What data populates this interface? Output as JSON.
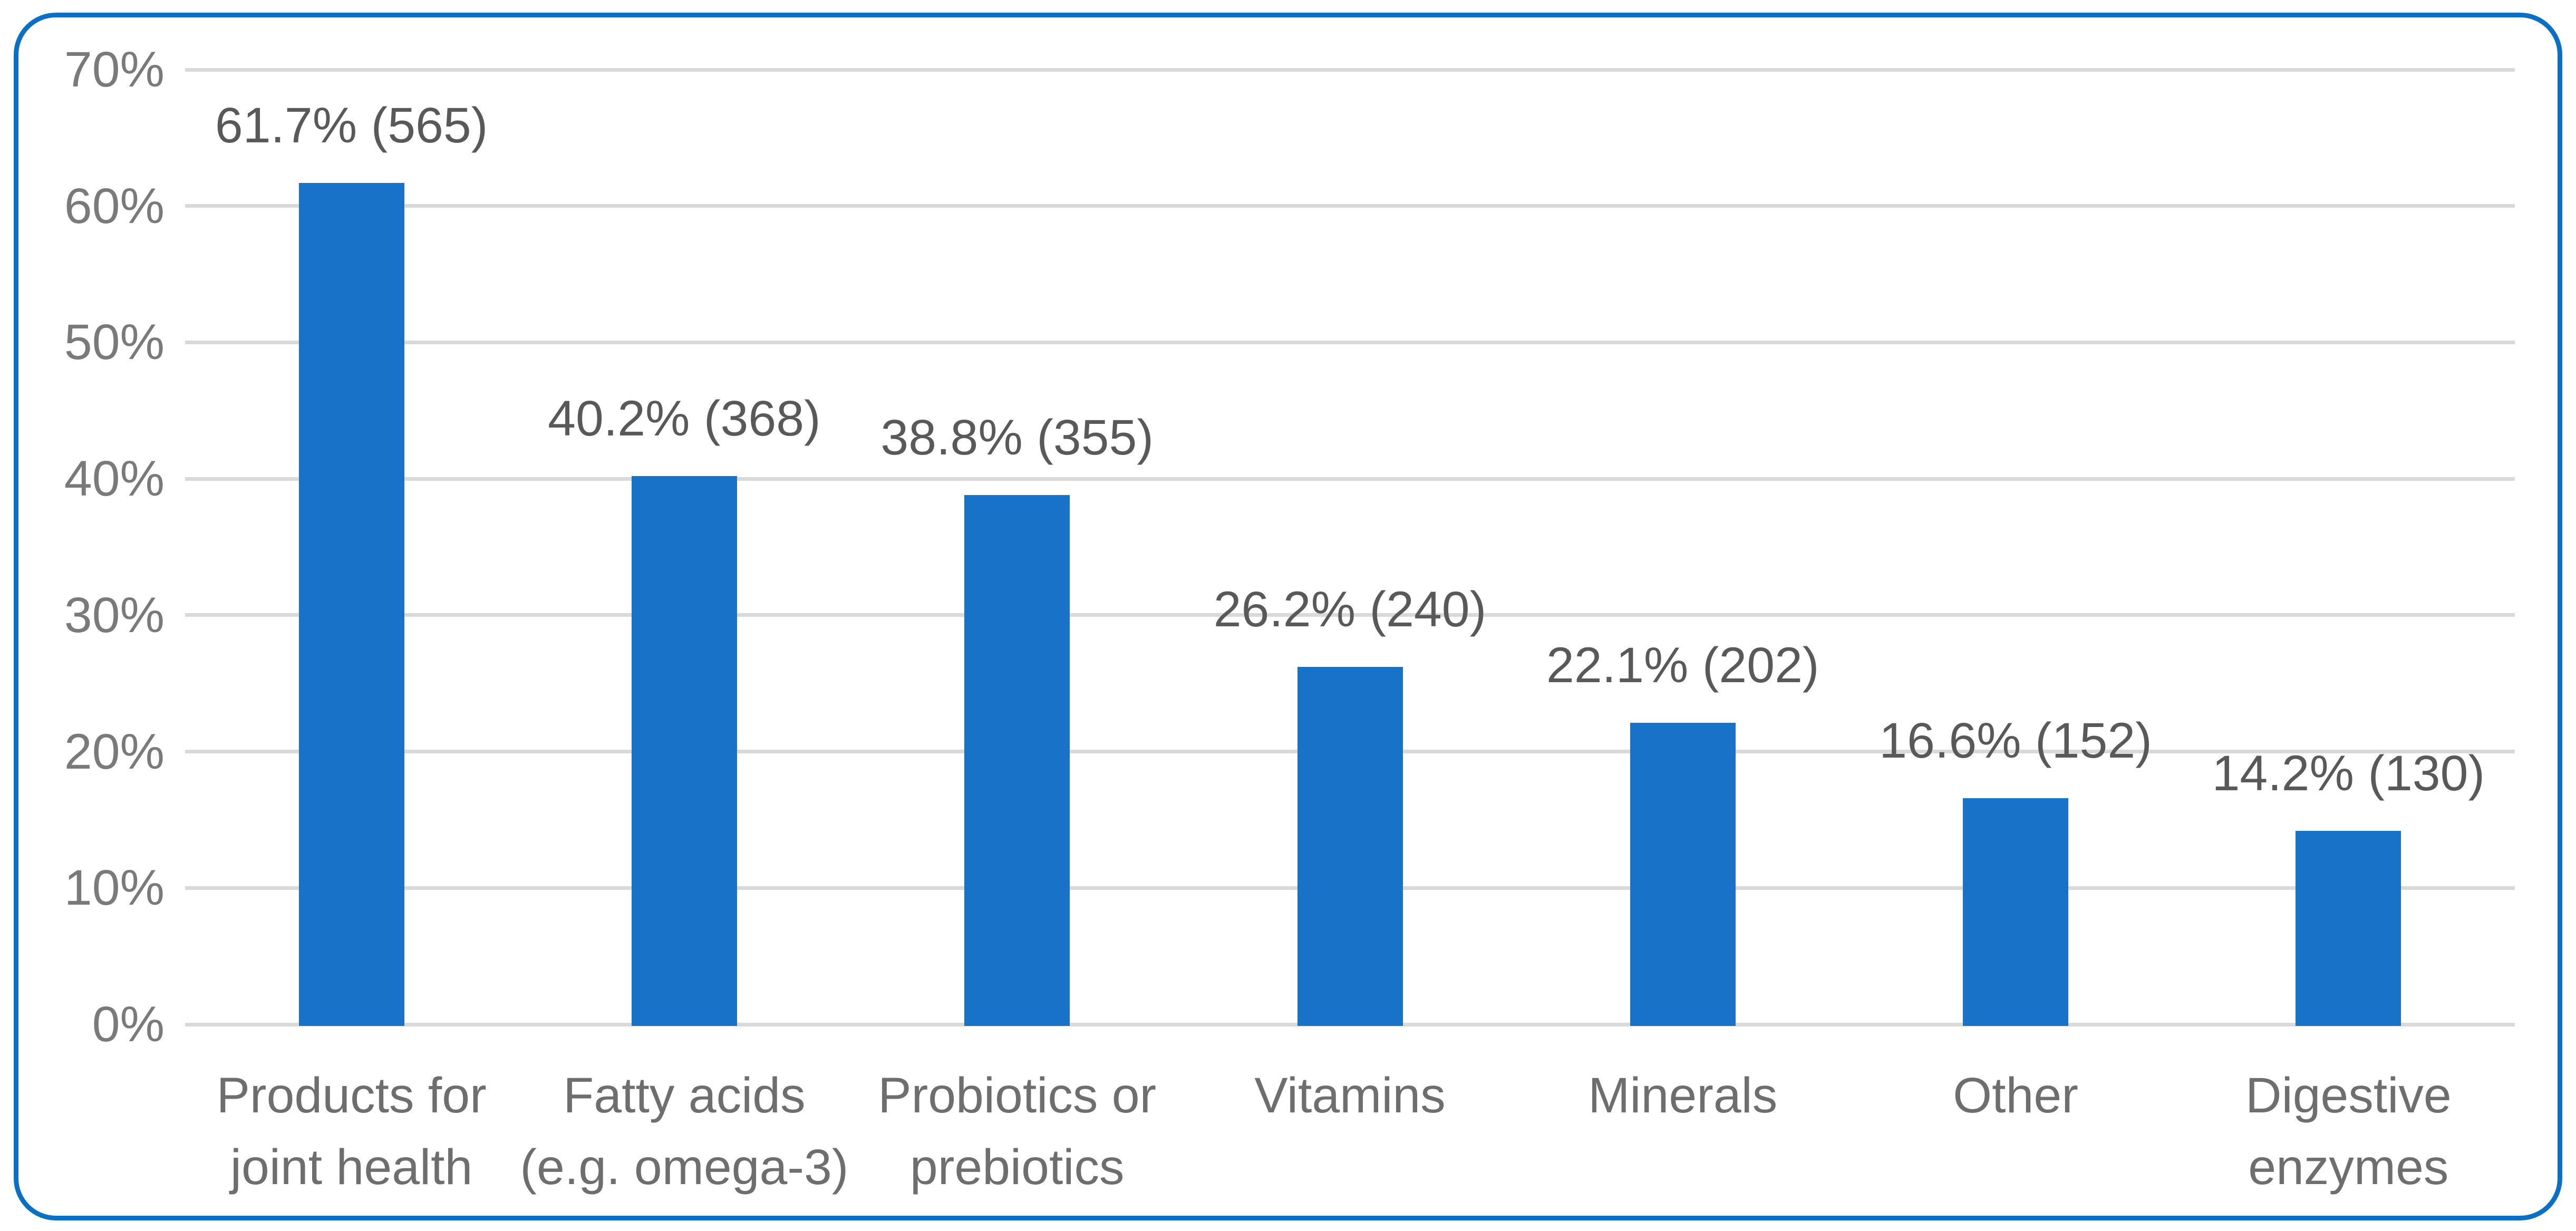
{
  "styles": {
    "background": "#FFFFFF",
    "frame_border_color": "#0B6FC3",
    "bar_color": "#1772C8",
    "gridline_color": "#D9D9D9",
    "axis_tick_color": "#7A7A7A",
    "category_label_color": "#6E6E6E",
    "data_label_color": "#595959"
  },
  "chart_data": {
    "type": "bar",
    "title": "",
    "xlabel": "",
    "ylabel": "",
    "grid": true,
    "legend": false,
    "ylim": [
      0,
      70
    ],
    "categories": [
      "Products for\njoint health",
      "Fatty acids\n(e.g. omega-3)",
      "Probiotics or\nprebiotics",
      "Vitamins",
      "Minerals",
      "Other",
      "Digestive\nenzymes"
    ],
    "values": [
      61.7,
      40.2,
      38.8,
      26.2,
      22.1,
      16.6,
      14.2
    ],
    "counts": [
      565,
      368,
      355,
      240,
      202,
      152,
      130
    ],
    "bar_labels": [
      "61.7% (565)",
      "40.2% (368)",
      "38.8% (355)",
      "26.2% (240)",
      "22.1% (202)",
      "16.6% (152)",
      "14.2% (130)"
    ],
    "y_ticks": [
      {
        "value": 0,
        "label": "0%"
      },
      {
        "value": 10,
        "label": "10%"
      },
      {
        "value": 20,
        "label": "20%"
      },
      {
        "value": 30,
        "label": "30%"
      },
      {
        "value": 40,
        "label": "40%"
      },
      {
        "value": 50,
        "label": "50%"
      },
      {
        "value": 60,
        "label": "60%"
      },
      {
        "value": 70,
        "label": "70%"
      }
    ]
  }
}
